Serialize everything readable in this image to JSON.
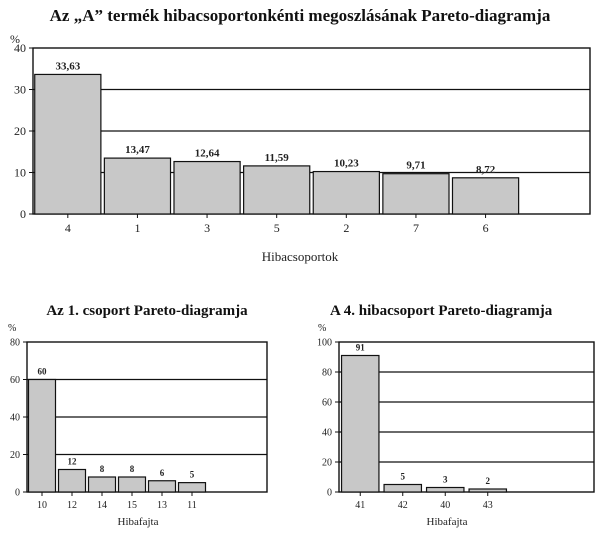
{
  "chart_data": [
    {
      "type": "bar",
      "title": "Az „A” termék hibacsoportonkénti megoszlásának Pareto-diagramja",
      "unit": "%",
      "xlabel": "Hibacsoportok",
      "categories": [
        "4",
        "1",
        "3",
        "5",
        "2",
        "7",
        "6"
      ],
      "values": [
        33.63,
        13.47,
        12.64,
        11.59,
        10.23,
        9.71,
        8.72
      ],
      "value_labels": [
        "33,63",
        "13,47",
        "12,64",
        "11,59",
        "10,23",
        "9,71",
        "8,72"
      ],
      "ylim": [
        0,
        40
      ],
      "yticks": [
        0,
        10,
        20,
        30,
        40
      ],
      "grid": true,
      "bar_color": "#c8c8c8"
    },
    {
      "type": "bar",
      "title": "Az 1. csoport Pareto-diagramja",
      "unit": "%",
      "xlabel": "Hibafajta",
      "categories": [
        "10",
        "12",
        "14",
        "15",
        "13",
        "11"
      ],
      "values": [
        60,
        12,
        8,
        8,
        6,
        5
      ],
      "value_labels": [
        "60",
        "12",
        "8",
        "8",
        "6",
        "5"
      ],
      "ylim": [
        0,
        80
      ],
      "yticks": [
        0,
        20,
        40,
        60,
        80
      ],
      "grid": true,
      "bar_color": "#c8c8c8"
    },
    {
      "type": "bar",
      "title": "A 4. hibacsoport Pareto-diagramja",
      "unit": "%",
      "xlabel": "Hibafajta",
      "categories": [
        "41",
        "42",
        "40",
        "43"
      ],
      "values": [
        91,
        5,
        3,
        2
      ],
      "value_labels": [
        "91",
        "5",
        "3",
        "2"
      ],
      "ylim": [
        0,
        100
      ],
      "yticks": [
        0,
        20,
        40,
        60,
        80,
        100
      ],
      "grid": true,
      "bar_color": "#c8c8c8"
    }
  ]
}
